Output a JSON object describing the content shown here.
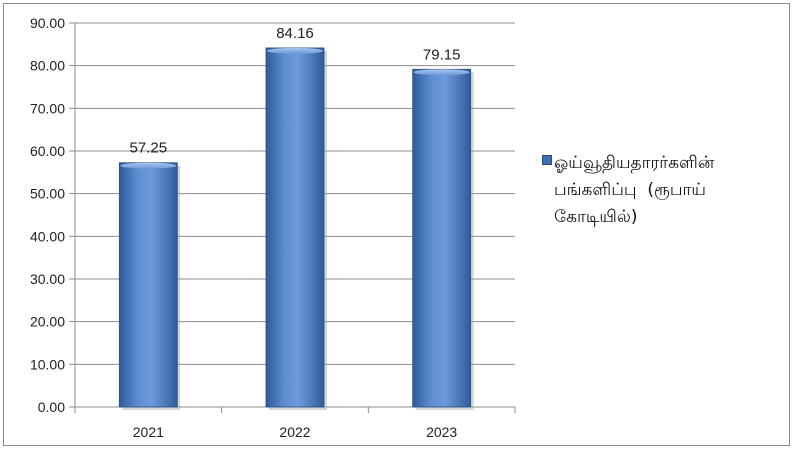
{
  "colors": {
    "bar_main": "#4f81bd",
    "bar_light": "#8fb3e0",
    "bar_dark": "#2e5a97",
    "grid": "#8c8c8c",
    "text": "#222222"
  },
  "chart_data": {
    "type": "bar",
    "categories": [
      "2021",
      "2022",
      "2023"
    ],
    "series": [
      {
        "name": "ஓய்வூதியதாரர்களின் பங்களிப்பு  (ரூபாய் கோடியில்)",
        "values": [
          57.25,
          84.16,
          79.15
        ]
      }
    ],
    "data_labels": [
      "57.25",
      "84.16",
      "79.15"
    ],
    "y_ticks": [
      "0.00",
      "10.00",
      "20.00",
      "30.00",
      "40.00",
      "50.00",
      "60.00",
      "70.00",
      "80.00",
      "90.00"
    ],
    "ylim": [
      0,
      90
    ],
    "grid": true,
    "legend_position": "right",
    "title": "",
    "xlabel": "",
    "ylabel": ""
  }
}
